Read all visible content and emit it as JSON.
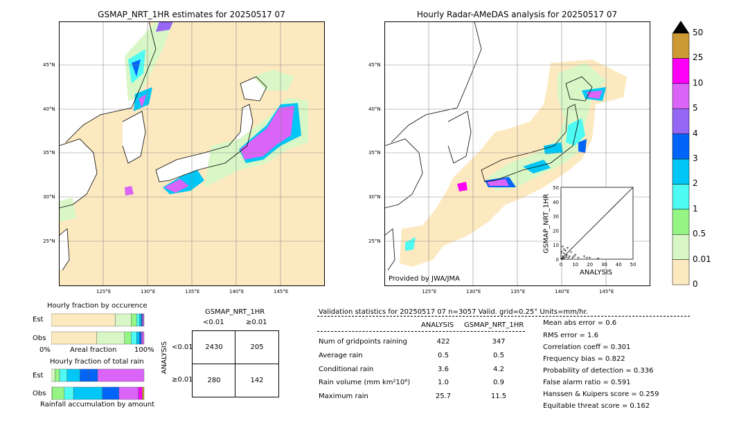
{
  "colors": {
    "ocean_background": "#fde9c0",
    "land": "#ffffff",
    "scale": [
      "#fde9c0",
      "#d9f7c6",
      "#94f584",
      "#4dfbf3",
      "#00c7f5",
      "#0065f8",
      "#9666f5",
      "#d964f7",
      "#ff00f6",
      "#cc9933",
      "#000000"
    ]
  },
  "left_map": {
    "title": "GSMAP_NRT_1HR estimates for 20250517 07",
    "lat_labels": [
      "45°N",
      "40°N",
      "35°N",
      "30°N",
      "25°N"
    ],
    "lon_labels": [
      "125°E",
      "130°E",
      "135°E",
      "140°E",
      "145°E"
    ]
  },
  "right_map": {
    "title": "Hourly Radar-AMeDAS analysis for 20250517 07",
    "lat_labels": [
      "45°N",
      "40°N",
      "35°N",
      "30°N",
      "25°N"
    ],
    "lon_labels": [
      "125°E",
      "130°E",
      "135°E",
      "140°E",
      "145°E"
    ],
    "provider": "Provided by JWA/JMA"
  },
  "colorbar": {
    "labels": [
      "0",
      "0.01",
      "0.5",
      "1",
      "2",
      "3",
      "4",
      "5",
      "10",
      "25",
      "50"
    ]
  },
  "scatter_inset": {
    "xlabel": "ANALYSIS",
    "ylabel": "GSMAP_NRT_1HR",
    "ticks": [
      "0",
      "10",
      "20",
      "30",
      "40",
      "50"
    ]
  },
  "fraction_occurrence": {
    "title": "Hourly fraction by occurence",
    "rows": [
      "Est",
      "Obs"
    ],
    "axis_left": "0%",
    "axis_mid": "Areal fraction",
    "axis_right": "100%"
  },
  "fraction_total": {
    "title": "Hourly fraction of total rain",
    "rows": [
      "Est",
      "Obs"
    ],
    "axis_label": "Rainfall accumulation by amount"
  },
  "contingency": {
    "title": "GSMAP_NRT_1HR",
    "col_headers": [
      "<0.01",
      "≥0.01"
    ],
    "row_axis": "ANALYSIS",
    "row_headers": [
      "<0.01",
      "≥0.01"
    ],
    "cells": [
      [
        "2430",
        "205"
      ],
      [
        "280",
        "142"
      ]
    ]
  },
  "validation": {
    "header": "Validation statistics for 20250517 07  n=3057 Valid. grid=0.25° Units=mm/hr.",
    "col_headers": [
      "ANALYSIS",
      "GSMAP_NRT_1HR"
    ],
    "rows": [
      {
        "label": "Num of gridpoints raining",
        "analysis": "422",
        "gsmap": "347"
      },
      {
        "label": "Average rain",
        "analysis": "0.5",
        "gsmap": "0.5"
      },
      {
        "label": "Conditional rain",
        "analysis": "3.6",
        "gsmap": "4.2"
      },
      {
        "label": "Rain volume (mm km²10⁶)",
        "analysis": "1.0",
        "gsmap": "0.9"
      },
      {
        "label": "Maximum rain",
        "analysis": "25.7",
        "gsmap": "11.5"
      }
    ],
    "scores": [
      "Mean abs error =    0.6",
      "RMS error =    1.6",
      "Correlation coeff =  0.301",
      "Frequency bias =  0.822",
      "Probability of detection =  0.336",
      "False alarm ratio =  0.591",
      "Hanssen & Kuipers score =  0.259",
      "Equitable threat score =  0.162"
    ]
  },
  "chart_data": [
    {
      "type": "bar",
      "title": "Hourly fraction by occurence",
      "categories": [
        "Est",
        "Obs"
      ],
      "series": [
        {
          "values": [
            0.69,
            0.49
          ]
        },
        {
          "values": [
            0.17,
            0.3
          ]
        },
        {
          "values": [
            0.06,
            0.07
          ]
        },
        {
          "values": [
            0.03,
            0.06
          ]
        },
        {
          "values": [
            0.02,
            0.03
          ]
        },
        {
          "values": [
            0.01,
            0.02
          ]
        },
        {
          "values": [
            0.01,
            0.01
          ]
        },
        {
          "values": [
            0.01,
            0.02
          ]
        }
      ]
    },
    {
      "type": "bar",
      "title": "Hourly fraction of total rain",
      "categories": [
        "Est",
        "Obs"
      ],
      "series": [
        {
          "values": [
            0.04,
            0.01
          ]
        },
        {
          "values": [
            0.05,
            0.13
          ]
        },
        {
          "values": [
            0.08,
            0.1
          ]
        },
        {
          "values": [
            0.14,
            0.31
          ]
        },
        {
          "values": [
            0.09,
            0.0
          ]
        },
        {
          "values": [
            0.1,
            0.18
          ]
        },
        {
          "values": [
            0.5,
            0.21
          ]
        },
        {
          "values": [
            0.0,
            0.04
          ]
        },
        {
          "values": [
            0.0,
            0.02
          ]
        }
      ]
    },
    {
      "type": "scatter",
      "xlabel": "ANALYSIS",
      "ylabel": "GSMAP_NRT_1HR",
      "xlim": [
        0,
        50
      ],
      "ylim": [
        0,
        50
      ],
      "points": [
        [
          0.5,
          0.3
        ],
        [
          1,
          2
        ],
        [
          1.5,
          0.5
        ],
        [
          2,
          4
        ],
        [
          2.5,
          1
        ],
        [
          3,
          6
        ],
        [
          3.5,
          2
        ],
        [
          4,
          3
        ],
        [
          4.5,
          8
        ],
        [
          5,
          1
        ],
        [
          6,
          2
        ],
        [
          7,
          5
        ],
        [
          8,
          1
        ],
        [
          9,
          2
        ],
        [
          10,
          3
        ],
        [
          12,
          1
        ],
        [
          16,
          2
        ],
        [
          18,
          1
        ],
        [
          20,
          1
        ],
        [
          25.7,
          0.5
        ],
        [
          1,
          9
        ],
        [
          2,
          7
        ],
        [
          0.5,
          5
        ]
      ]
    }
  ]
}
